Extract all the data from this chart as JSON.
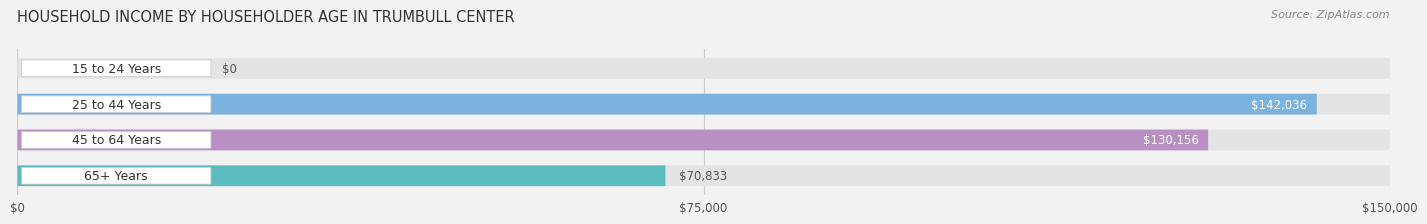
{
  "title": "HOUSEHOLD INCOME BY HOUSEHOLDER AGE IN TRUMBULL CENTER",
  "source": "Source: ZipAtlas.com",
  "categories": [
    "15 to 24 Years",
    "25 to 44 Years",
    "45 to 64 Years",
    "65+ Years"
  ],
  "values": [
    0,
    142036,
    130156,
    70833
  ],
  "bar_colors": [
    "#f4a0a8",
    "#7ab3e0",
    "#b98fc4",
    "#5bbcbf"
  ],
  "max_value": 150000,
  "x_ticks": [
    0,
    75000,
    150000
  ],
  "x_tick_labels": [
    "$0",
    "$75,000",
    "$150,000"
  ],
  "value_labels": [
    "$0",
    "$142,036",
    "$130,156",
    "$70,833"
  ],
  "background_color": "#f2f2f2",
  "bar_background": "#e4e4e4",
  "title_fontsize": 10.5,
  "source_fontsize": 8,
  "label_fontsize": 9,
  "value_fontsize": 8.5
}
